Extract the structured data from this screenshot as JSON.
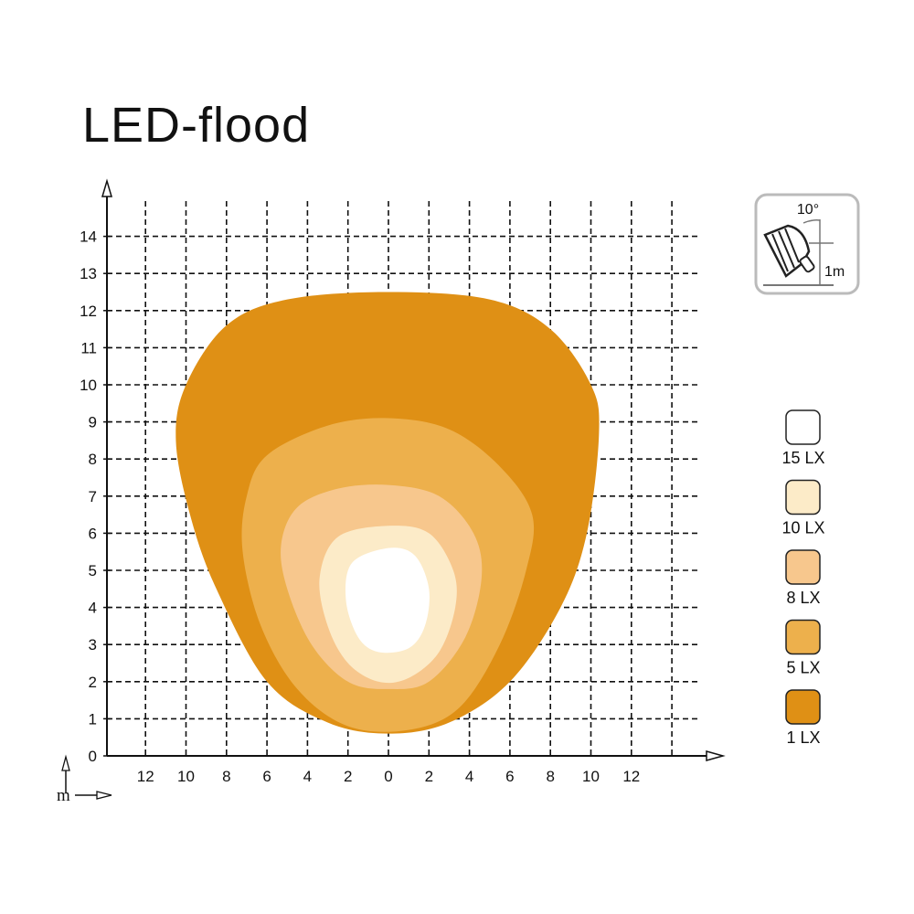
{
  "title": "LED-flood",
  "icon": {
    "name": "lamp-mount-angle-icon",
    "angle_label": "10°",
    "height_label": "1m"
  },
  "axis_unit_label": "m",
  "chart_data": {
    "type": "area",
    "title": "LED-flood",
    "xlabel": "m",
    "ylabel": "m",
    "xlim": [
      -14,
      14
    ],
    "ylim": [
      0,
      15
    ],
    "grid": true,
    "legend_placement": "right",
    "xticks": [
      -12,
      -10,
      -8,
      -6,
      -4,
      -2,
      0,
      2,
      4,
      6,
      8,
      10,
      12
    ],
    "xtick_labels": [
      "12",
      "10",
      "8",
      "6",
      "4",
      "2",
      "0",
      "2",
      "4",
      "6",
      "8",
      "10",
      "12"
    ],
    "yticks": [
      0,
      1,
      2,
      3,
      4,
      5,
      6,
      7,
      8,
      9,
      10,
      11,
      12,
      13,
      14
    ],
    "ytick_labels": [
      "0",
      "1",
      "2",
      "3",
      "4",
      "5",
      "6",
      "7",
      "8",
      "9",
      "10",
      "11",
      "12",
      "13",
      "14"
    ],
    "series": [
      {
        "name": "1 LX",
        "color": "#DF9015",
        "points": [
          [
            0,
            12.5
          ],
          [
            5,
            12.3
          ],
          [
            8,
            11.5
          ],
          [
            10,
            10
          ],
          [
            10.4,
            8.7
          ],
          [
            9.8,
            6
          ],
          [
            8.5,
            4
          ],
          [
            6,
            2
          ],
          [
            3,
            0.9
          ],
          [
            0,
            0.6
          ],
          [
            -3,
            0.9
          ],
          [
            -6,
            2
          ],
          [
            -8.5,
            4.5
          ],
          [
            -9.8,
            6.5
          ],
          [
            -10.5,
            8.5
          ],
          [
            -10,
            10
          ],
          [
            -8,
            11.6
          ],
          [
            -5,
            12.3
          ]
        ]
      },
      {
        "name": "5 LX",
        "color": "#EDB04C",
        "points": [
          [
            0,
            9.1
          ],
          [
            3,
            8.8
          ],
          [
            5.5,
            7.8
          ],
          [
            7.1,
            6.5
          ],
          [
            6.8,
            5
          ],
          [
            5.5,
            3
          ],
          [
            3.5,
            1.3
          ],
          [
            1,
            0.7
          ],
          [
            -2,
            0.8
          ],
          [
            -4.5,
            1.8
          ],
          [
            -6.3,
            3.5
          ],
          [
            -7.2,
            5.5
          ],
          [
            -7,
            7
          ],
          [
            -6,
            8.1
          ],
          [
            -3,
            8.9
          ]
        ]
      },
      {
        "name": "8 LX",
        "color": "#F7C78D",
        "points": [
          [
            0,
            7.3
          ],
          [
            2.5,
            7
          ],
          [
            4.2,
            6
          ],
          [
            4.6,
            4.8
          ],
          [
            3.8,
            3.2
          ],
          [
            2,
            2
          ],
          [
            0,
            1.8
          ],
          [
            -2,
            2
          ],
          [
            -3.8,
            3
          ],
          [
            -5,
            4.5
          ],
          [
            -5.3,
            5.7
          ],
          [
            -4.5,
            6.7
          ],
          [
            -2.5,
            7.2
          ]
        ]
      },
      {
        "name": "10 LX",
        "color": "#FCEBC8",
        "points": [
          [
            0,
            6.2
          ],
          [
            2,
            6
          ],
          [
            3.2,
            5
          ],
          [
            3.3,
            4
          ],
          [
            2.5,
            2.8
          ],
          [
            1,
            2.1
          ],
          [
            -0.5,
            2
          ],
          [
            -2,
            2.5
          ],
          [
            -3,
            3.5
          ],
          [
            -3.4,
            4.8
          ],
          [
            -2.5,
            5.9
          ]
        ]
      },
      {
        "name": "15 LX",
        "color": "#FFFFFF",
        "points": [
          [
            0,
            5.6
          ],
          [
            1.3,
            5.4
          ],
          [
            2,
            4.5
          ],
          [
            1.8,
            3.5
          ],
          [
            1,
            2.9
          ],
          [
            -0.5,
            2.8
          ],
          [
            -1.5,
            3.2
          ],
          [
            -2.1,
            4.2
          ],
          [
            -1.8,
            5.2
          ]
        ]
      }
    ],
    "legend": [
      {
        "label": "15 LX",
        "color": "#FFFFFF"
      },
      {
        "label": "10 LX",
        "color": "#FCEBC8"
      },
      {
        "label": "8 LX",
        "color": "#F7C78D"
      },
      {
        "label": "5 LX",
        "color": "#EDB04C"
      },
      {
        "label": "1 LX",
        "color": "#DF9015"
      }
    ]
  }
}
